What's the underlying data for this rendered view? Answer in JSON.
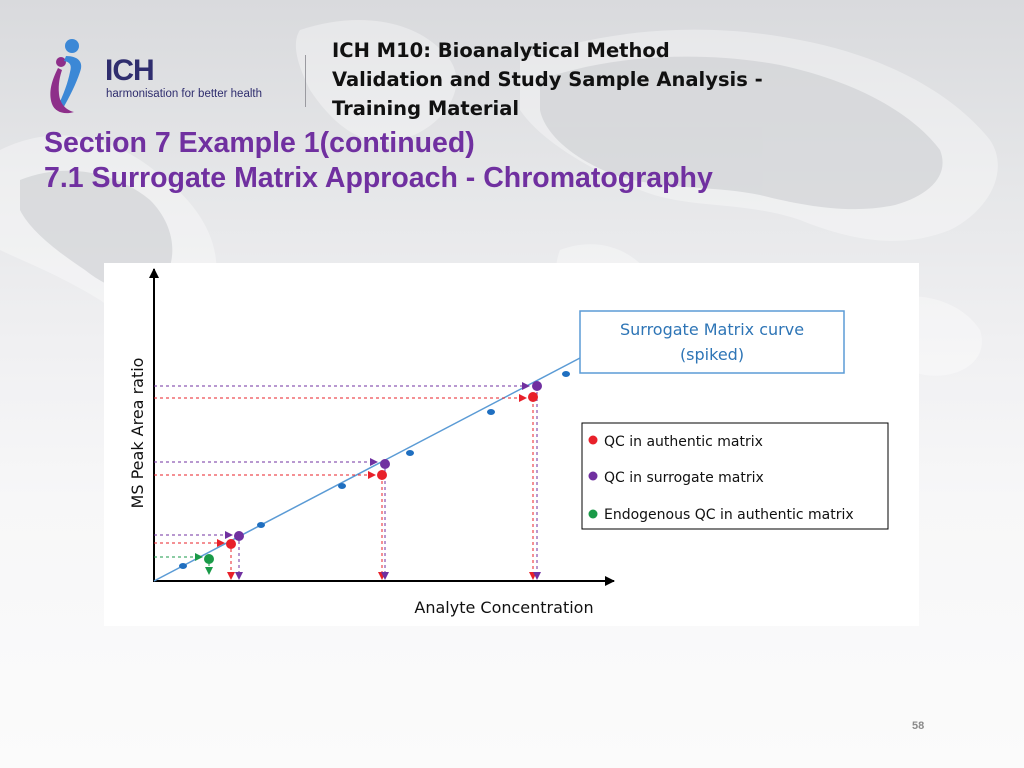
{
  "header": {
    "org_name": "ICH",
    "org_tagline": "harmonisation for better health",
    "title_lines": [
      "ICH M10: Bioanalytical Method",
      "Validation and Study Sample Analysis -",
      "Training Material"
    ]
  },
  "slide": {
    "title_line1": "Section 7 Example 1(continued)",
    "title_line2": "7.1 Surrogate Matrix Approach - Chromatography",
    "page_number": "58"
  },
  "diagram": {
    "y_axis_label": "MS Peak Area ratio",
    "x_axis_label": "Analyte Concentration",
    "curve_label_lines": [
      "Surrogate Matrix curve",
      "(spiked)"
    ],
    "legend": [
      {
        "key": "authentic",
        "label": "QC in authentic matrix",
        "color": "#e8202a"
      },
      {
        "key": "surrogate",
        "label": "QC in surrogate matrix",
        "color": "#7030a0"
      },
      {
        "key": "endogenous",
        "label": "Endogenous QC in authentic matrix",
        "color": "#1a9a48"
      }
    ],
    "colors": {
      "curve": "#5b9bd5",
      "calibrator": "#1f6fc0",
      "axis": "#000000",
      "box_border": "#5b9bd5"
    }
  }
}
